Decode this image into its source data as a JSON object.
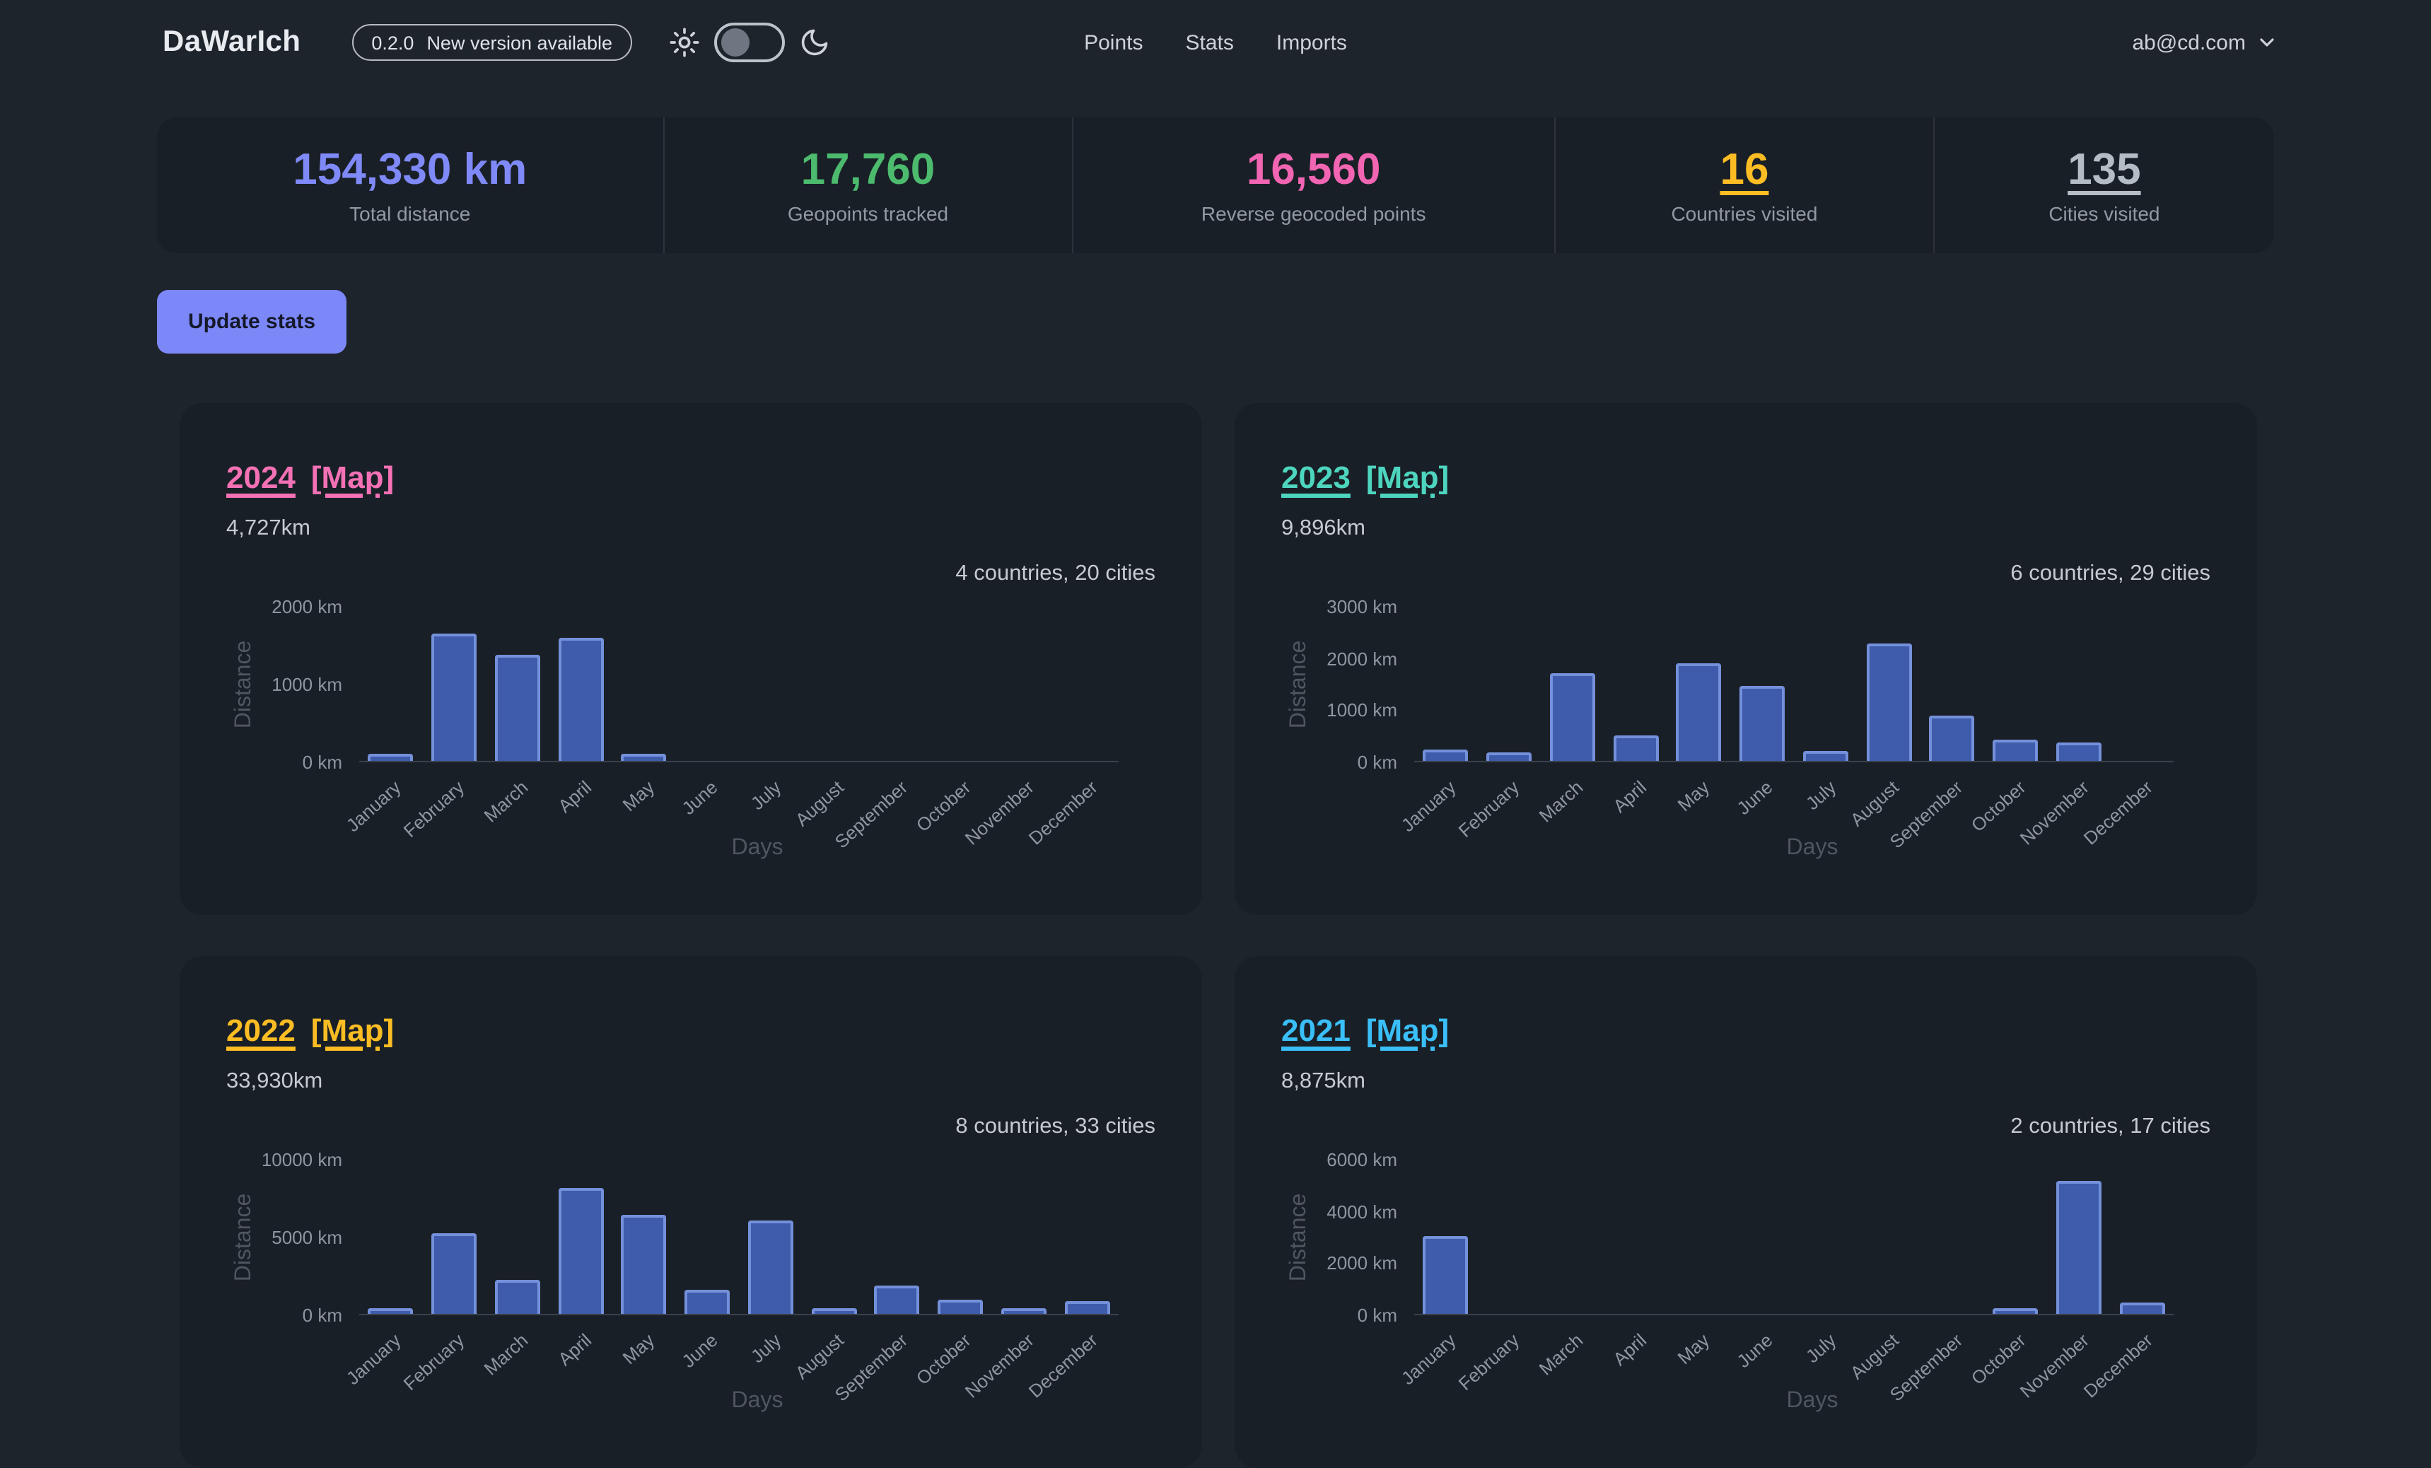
{
  "navbar": {
    "logo": "DaWarIch",
    "version_badge": {
      "version": "0.2.0",
      "text": "New version available"
    },
    "theme_toggle": {
      "state": "off"
    },
    "links": [
      {
        "label": "Points"
      },
      {
        "label": "Stats"
      },
      {
        "label": "Imports"
      }
    ],
    "user": {
      "email": "ab@cd.com"
    }
  },
  "stats": [
    {
      "value": "154,330 km",
      "label": "Total distance",
      "color": "#7f8af8",
      "link": false
    },
    {
      "value": "17,760",
      "label": "Geopoints tracked",
      "color": "#4cbb6e",
      "link": false
    },
    {
      "value": "16,560",
      "label": "Reverse geocoded points",
      "color": "#f165b3",
      "link": false
    },
    {
      "value": "16",
      "label": "Countries visited",
      "color": "#fbbd23",
      "link": true
    },
    {
      "value": "135",
      "label": "Cities visited",
      "color": "#b6bcc6",
      "link": true
    }
  ],
  "update_button": "Update stats",
  "cards": [
    {
      "year": "2024",
      "map_label": "[Map]",
      "color": "#f471b5",
      "distance": "4,727km",
      "summary": "4 countries, 20 cities",
      "chart_data": {
        "type": "bar",
        "title": "2024 monthly distance",
        "xlabel": "Days",
        "ylabel": "Distance",
        "unit": "km",
        "ylim": [
          0,
          2000
        ],
        "yticks": [
          0,
          1000,
          2000
        ],
        "grid": false,
        "legend": "none",
        "categories": [
          "January",
          "February",
          "March",
          "April",
          "May",
          "June",
          "July",
          "August",
          "September",
          "October",
          "November",
          "December"
        ],
        "values": [
          90,
          1640,
          1360,
          1580,
          90,
          0,
          0,
          0,
          0,
          0,
          0,
          0
        ]
      }
    },
    {
      "year": "2023",
      "map_label": "[Map]",
      "color": "#4ed5bf",
      "distance": "9,896km",
      "summary": "6 countries, 29 cities",
      "chart_data": {
        "type": "bar",
        "title": "2023 monthly distance",
        "xlabel": "Days",
        "ylabel": "Distance",
        "unit": "km",
        "ylim": [
          0,
          3000
        ],
        "yticks": [
          0,
          1000,
          2000,
          3000
        ],
        "grid": false,
        "legend": "none",
        "categories": [
          "January",
          "February",
          "March",
          "April",
          "May",
          "June",
          "July",
          "August",
          "September",
          "October",
          "November",
          "December"
        ],
        "values": [
          220,
          170,
          1680,
          480,
          1880,
          1450,
          200,
          2250,
          870,
          410,
          350,
          0
        ]
      }
    },
    {
      "year": "2022",
      "map_label": "[Map]",
      "color": "#fbbd23",
      "distance": "33,930km",
      "summary": "8 countries, 33 cities",
      "chart_data": {
        "type": "bar",
        "title": "2022 monthly distance",
        "xlabel": "Days",
        "ylabel": "Distance",
        "unit": "km",
        "ylim": [
          0,
          10000
        ],
        "yticks": [
          0,
          5000,
          10000
        ],
        "grid": false,
        "legend": "none",
        "categories": [
          "January",
          "February",
          "March",
          "April",
          "May",
          "June",
          "July",
          "August",
          "September",
          "October",
          "November",
          "December"
        ],
        "values": [
          300,
          5200,
          2150,
          8100,
          6400,
          1500,
          6000,
          250,
          1800,
          900,
          250,
          800
        ]
      }
    },
    {
      "year": "2021",
      "map_label": "[Map]",
      "color": "#3abff8",
      "distance": "8,875km",
      "summary": "2 countries, 17 cities",
      "chart_data": {
        "type": "bar",
        "title": "2021 monthly distance",
        "xlabel": "Days",
        "ylabel": "Distance",
        "unit": "km",
        "ylim": [
          0,
          6000
        ],
        "yticks": [
          0,
          2000,
          4000,
          6000
        ],
        "grid": false,
        "legend": "none",
        "categories": [
          "January",
          "February",
          "March",
          "April",
          "May",
          "June",
          "July",
          "August",
          "September",
          "October",
          "November",
          "December"
        ],
        "values": [
          3020,
          0,
          0,
          0,
          0,
          0,
          0,
          0,
          0,
          200,
          5150,
          450
        ]
      }
    }
  ]
}
